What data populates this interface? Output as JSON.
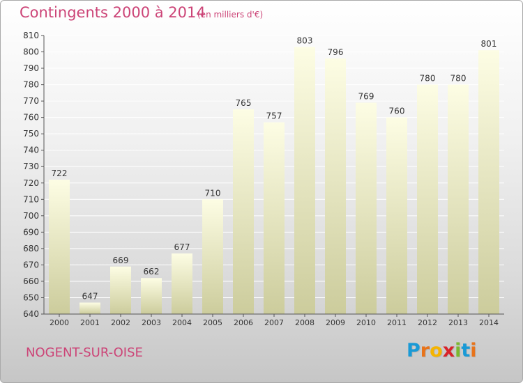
{
  "title": "Contingents 2000 à 2014",
  "subtitle": "(en milliers d'€)",
  "commune": "NOGENT-SUR-OISE",
  "brand": {
    "letters": [
      "P",
      "r",
      "o",
      "x",
      "i",
      "t",
      "i"
    ],
    "colors": [
      "#1a9ad6",
      "#e8731a",
      "#f5b400",
      "#d8232a",
      "#7cb82f",
      "#1a9ad6",
      "#e8731a"
    ]
  },
  "colors": {
    "title": "#cc4477",
    "bar_top": "#fdfde4",
    "bar_bottom": "#cccc9c",
    "grid": "#ffffff",
    "tick_text": "#333333"
  },
  "chart_data": {
    "type": "bar",
    "categories": [
      "2000",
      "2001",
      "2002",
      "2003",
      "2004",
      "2005",
      "2006",
      "2007",
      "2008",
      "2009",
      "2010",
      "2011",
      "2012",
      "2013",
      "2014"
    ],
    "values": [
      722,
      647,
      669,
      662,
      677,
      710,
      765,
      757,
      803,
      796,
      769,
      760,
      780,
      780,
      801
    ],
    "ylim": [
      640,
      810
    ],
    "yticks": [
      640,
      650,
      660,
      670,
      680,
      690,
      700,
      710,
      720,
      730,
      740,
      750,
      760,
      770,
      780,
      790,
      800,
      810
    ],
    "grid": true,
    "xlabel": "",
    "ylabel": ""
  }
}
